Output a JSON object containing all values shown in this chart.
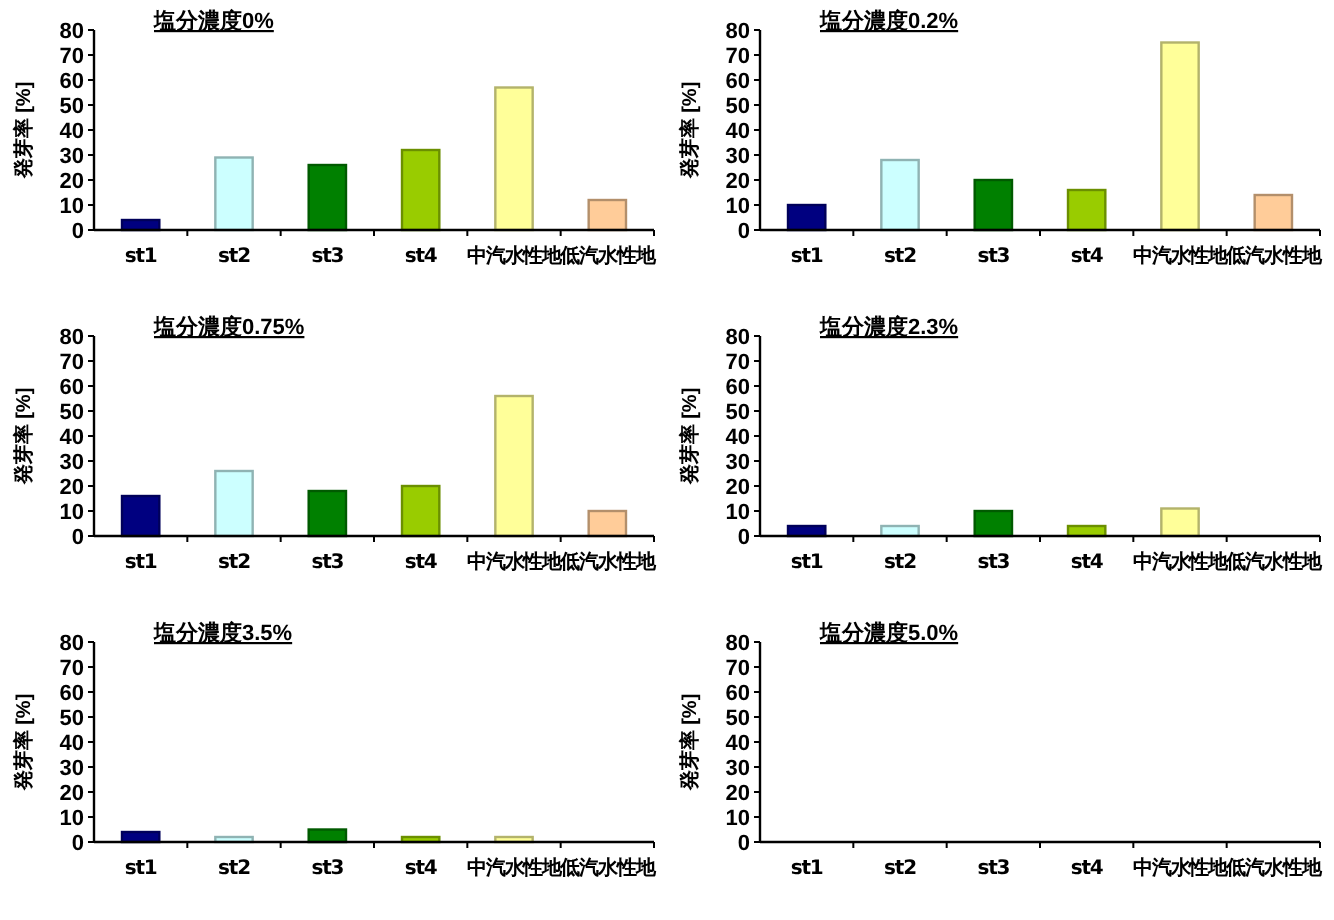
{
  "chart_data": [
    {
      "type": "bar",
      "title": "塩分濃度0%",
      "ylabel": "発芽率 [%]",
      "categories": [
        "st1",
        "st2",
        "st3",
        "st4",
        "中汽水性地",
        "低汽水性地"
      ],
      "values": [
        4,
        29,
        26,
        32,
        57,
        12
      ],
      "colors": [
        "#000080",
        "#ccffff",
        "#008000",
        "#99cc00",
        "#ffff99",
        "#ffcc99"
      ],
      "ylim": [
        0,
        80
      ],
      "yticks": [
        0,
        10,
        20,
        30,
        40,
        50,
        60,
        70,
        80
      ]
    },
    {
      "type": "bar",
      "title": "塩分濃度0.2%",
      "ylabel": "発芽率 [%]",
      "categories": [
        "st1",
        "st2",
        "st3",
        "st4",
        "中汽水性地",
        "低汽水性地"
      ],
      "values": [
        10,
        28,
        20,
        16,
        75,
        14
      ],
      "colors": [
        "#000080",
        "#ccffff",
        "#008000",
        "#99cc00",
        "#ffff99",
        "#ffcc99"
      ],
      "ylim": [
        0,
        80
      ],
      "yticks": [
        0,
        10,
        20,
        30,
        40,
        50,
        60,
        70,
        80
      ]
    },
    {
      "type": "bar",
      "title": "塩分濃度0.75%",
      "ylabel": "発芽率 [%]",
      "categories": [
        "st1",
        "st2",
        "st3",
        "st4",
        "中汽水性地",
        "低汽水性地"
      ],
      "values": [
        16,
        26,
        18,
        20,
        56,
        10
      ],
      "colors": [
        "#000080",
        "#ccffff",
        "#008000",
        "#99cc00",
        "#ffff99",
        "#ffcc99"
      ],
      "ylim": [
        0,
        80
      ],
      "yticks": [
        0,
        10,
        20,
        30,
        40,
        50,
        60,
        70,
        80
      ]
    },
    {
      "type": "bar",
      "title": "塩分濃度2.3%",
      "ylabel": "発芽率 [%]",
      "categories": [
        "st1",
        "st2",
        "st3",
        "st4",
        "中汽水性地",
        "低汽水性地"
      ],
      "values": [
        4,
        4,
        10,
        4,
        11,
        0
      ],
      "colors": [
        "#000080",
        "#ccffff",
        "#008000",
        "#99cc00",
        "#ffff99",
        "#ffcc99"
      ],
      "ylim": [
        0,
        80
      ],
      "yticks": [
        0,
        10,
        20,
        30,
        40,
        50,
        60,
        70,
        80
      ]
    },
    {
      "type": "bar",
      "title": "塩分濃度3.5%",
      "ylabel": "発芽率 [%]",
      "categories": [
        "st1",
        "st2",
        "st3",
        "st4",
        "中汽水性地",
        "低汽水性地"
      ],
      "values": [
        4,
        2,
        5,
        2,
        2,
        0
      ],
      "colors": [
        "#000080",
        "#ccffff",
        "#008000",
        "#99cc00",
        "#ffff99",
        "#ffcc99"
      ],
      "ylim": [
        0,
        80
      ],
      "yticks": [
        0,
        10,
        20,
        30,
        40,
        50,
        60,
        70,
        80
      ]
    },
    {
      "type": "bar",
      "title": "塩分濃度5.0%",
      "ylabel": "発芽率 [%]",
      "categories": [
        "st1",
        "st2",
        "st3",
        "st4",
        "中汽水性地",
        "低汽水性地"
      ],
      "values": [
        0,
        0,
        0,
        0,
        0,
        0
      ],
      "colors": [
        "#000080",
        "#ccffff",
        "#008000",
        "#99cc00",
        "#ffff99",
        "#ffcc99"
      ],
      "ylim": [
        0,
        80
      ],
      "yticks": [
        0,
        10,
        20,
        30,
        40,
        50,
        60,
        70,
        80
      ]
    }
  ]
}
